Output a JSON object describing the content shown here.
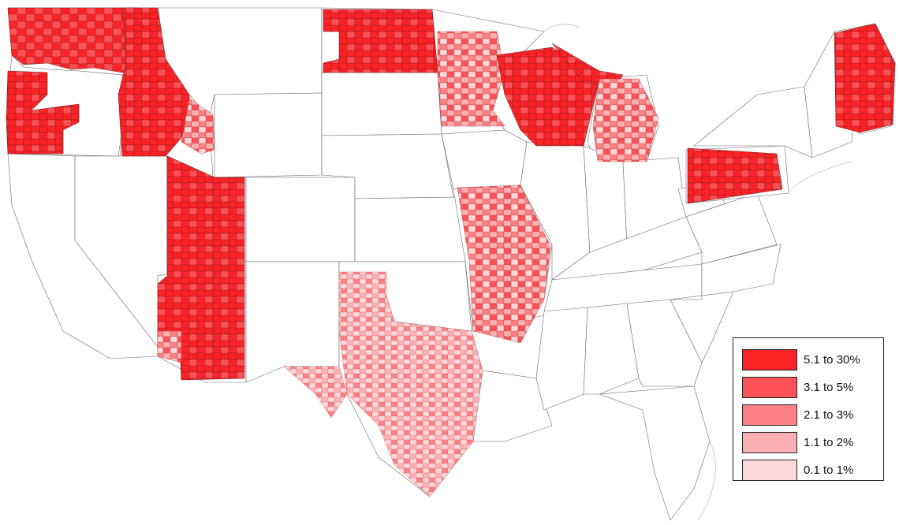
{
  "colors": {
    "c1": "#fc2327",
    "c2": "#fc5257",
    "c3": "#fc8084",
    "c4": "#fdb0b3",
    "c5": "#fed8da",
    "state_fill": "#ffffff",
    "state_stroke": "#6b6b6b"
  },
  "legend": {
    "items": [
      {
        "label": "5.1 to 30%",
        "color_key": "c1"
      },
      {
        "label": "3.1 to 5%",
        "color_key": "c2"
      },
      {
        "label": "2.1 to 3%",
        "color_key": "c3"
      },
      {
        "label": "1.1 to 2%",
        "color_key": "c4"
      },
      {
        "label": "0.1 to 1%",
        "color_key": "c5"
      }
    ]
  }
}
